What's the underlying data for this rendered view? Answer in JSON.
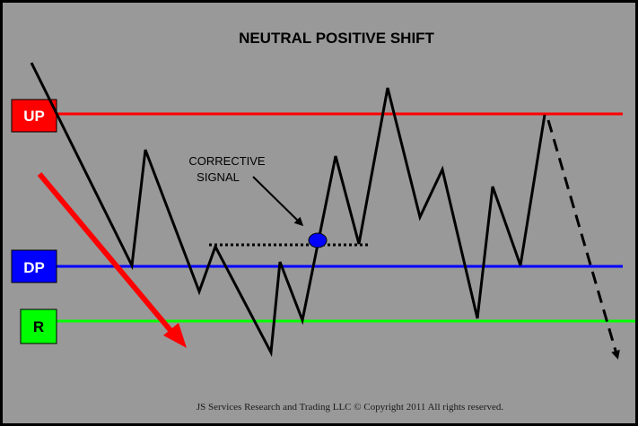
{
  "title": "NEUTRAL POSITIVE SHIFT",
  "levels": [
    {
      "id": "up",
      "label": "UP",
      "line_color": "#ff0000",
      "box_fill": "#ff0000",
      "text_color": "#ffffff"
    },
    {
      "id": "dp",
      "label": "DP",
      "line_color": "#0000ff",
      "box_fill": "#0000ff",
      "text_color": "#ffffff"
    },
    {
      "id": "r",
      "label": "R",
      "line_color": "#00ff00",
      "box_fill": "#00ff00",
      "text_color": "#000000"
    }
  ],
  "annotation": {
    "line1": "CORRECTIVE",
    "line2": "SIGNAL"
  },
  "signal_marker_color": "#0000ff",
  "trend_arrow_color": "#ff0000",
  "price_path_color": "#000000",
  "background_color": "#999999",
  "footer": "JS Services Research and Trading LLC © Copyright 2011 All rights reserved."
}
